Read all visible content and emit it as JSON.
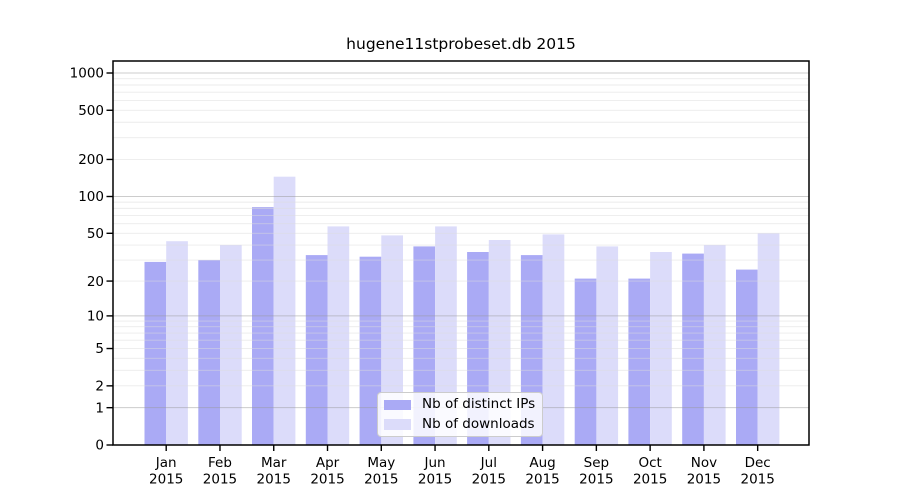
{
  "chart_data": {
    "type": "bar",
    "title": "hugene11stprobeset.db 2015",
    "categories": [
      "Jan",
      "Feb",
      "Mar",
      "Apr",
      "May",
      "Jun",
      "Jul",
      "Aug",
      "Sep",
      "Oct",
      "Nov",
      "Dec"
    ],
    "x_year": "2015",
    "series": [
      {
        "name": "Nb of distinct IPs",
        "key": "distinct-ips",
        "color": "#aaaaf5",
        "values": [
          29,
          30,
          82,
          33,
          32,
          39,
          35,
          33,
          21,
          21,
          34,
          25
        ]
      },
      {
        "name": "Nb of downloads",
        "key": "downloads",
        "color": "#dcdcfa",
        "values": [
          43,
          40,
          145,
          57,
          48,
          57,
          44,
          49,
          39,
          35,
          40,
          50
        ]
      }
    ],
    "y_axis": {
      "scale": "log1p",
      "ticks": [
        0,
        1,
        2,
        5,
        10,
        20,
        50,
        100,
        200,
        500,
        1000
      ],
      "top": 1250
    },
    "x_axis": {
      "label_lines": 2
    },
    "legend": {
      "position": "lower-center-inside"
    },
    "grid": {
      "on": true,
      "major_color": "#9a9a9a",
      "minor_color": "#dcdcdc"
    }
  }
}
